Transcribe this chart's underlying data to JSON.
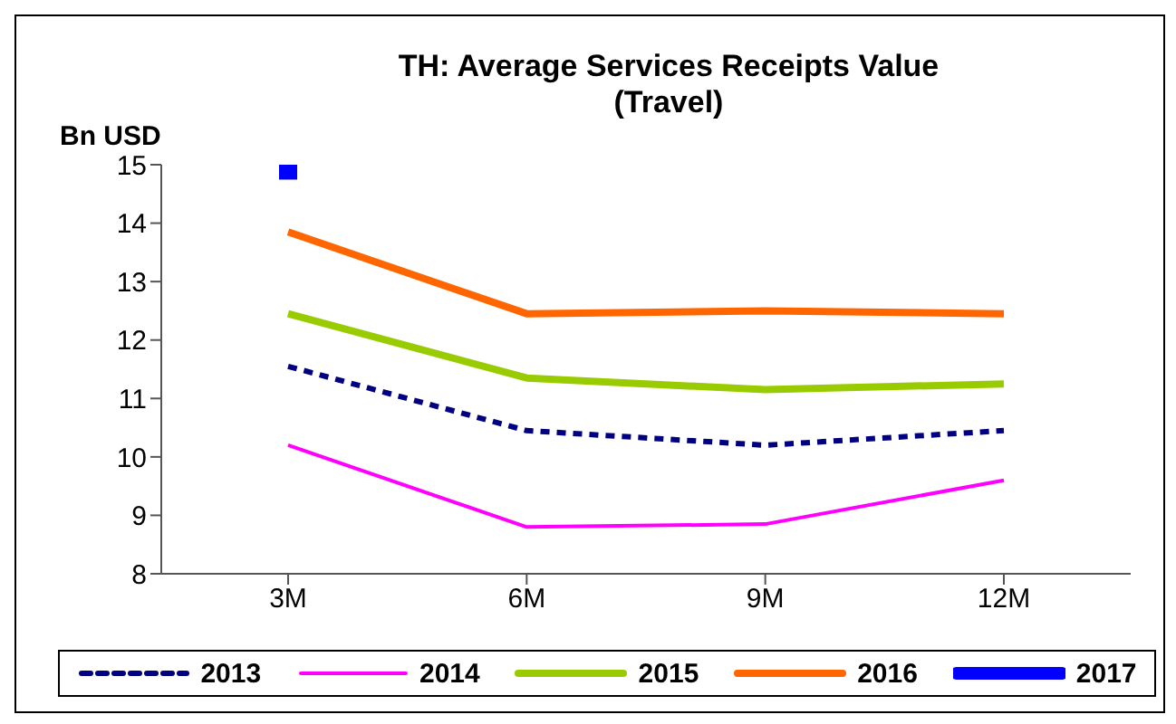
{
  "chart_data": {
    "type": "line",
    "title": "TH: Average Services Receipts Value\n(Travel)",
    "ylabel": "Bn USD",
    "categories": [
      "3M",
      "6M",
      "9M",
      "12M"
    ],
    "series": [
      {
        "name": "2013",
        "color": "#000080",
        "values": [
          11.55,
          10.45,
          10.2,
          10.45
        ],
        "line_style": "dashed"
      },
      {
        "name": "2014",
        "color": "#ff00ff",
        "values": [
          10.2,
          8.8,
          8.85,
          9.6
        ]
      },
      {
        "name": "2015",
        "color": "#99cc00",
        "values": [
          12.45,
          11.35,
          11.15,
          11.25
        ]
      },
      {
        "name": "2016",
        "color": "#ff6600",
        "values": [
          13.85,
          12.45,
          12.5,
          12.45
        ]
      },
      {
        "name": "2017",
        "color": "#0000ff",
        "values": [
          14.9,
          null,
          null,
          null
        ],
        "marker": "square"
      }
    ],
    "ylim": [
      8,
      15
    ],
    "yticks": [
      8,
      9,
      10,
      11,
      12,
      13,
      14,
      15
    ],
    "legend": "bottom",
    "marker": "none"
  }
}
